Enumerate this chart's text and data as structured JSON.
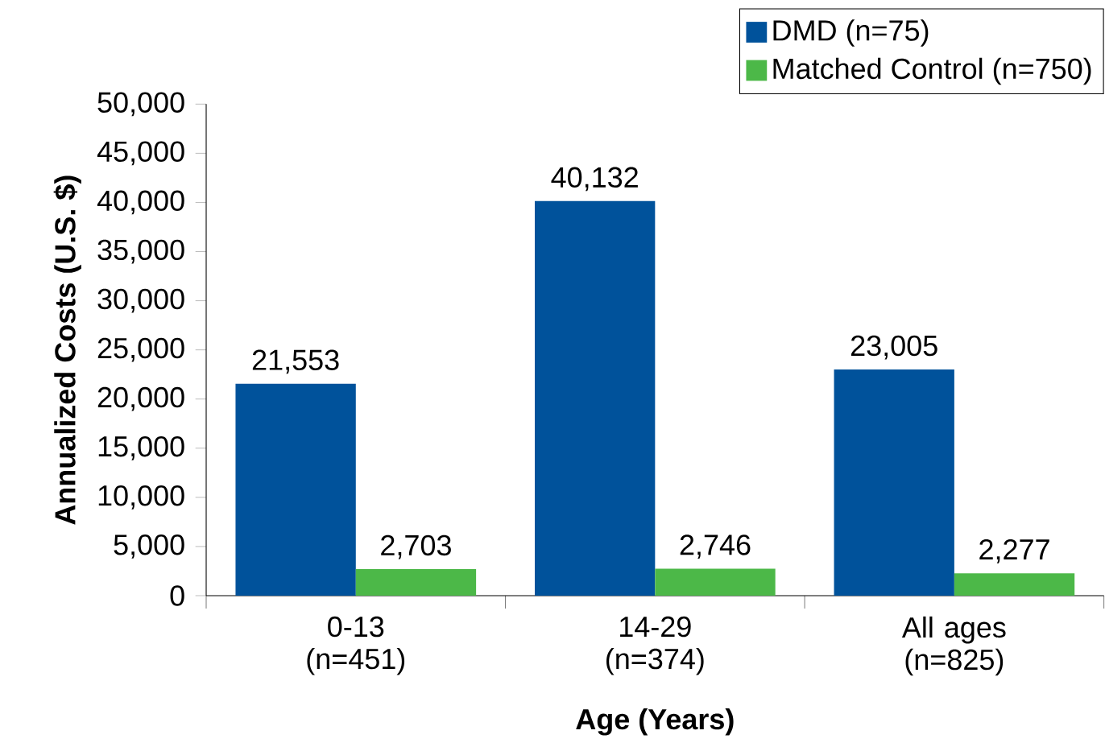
{
  "chart_data": {
    "type": "bar",
    "xlabel": "Age (Years)",
    "ylabel": "Annualized Costs (U.S. $)",
    "categories": [
      "0-13 (n=451)",
      "14-29 (n=374)",
      "All ages (n=825)"
    ],
    "series": [
      {
        "name": "DMD (n=75)",
        "color": "#00529b",
        "values": [
          21553,
          40132,
          23005
        ],
        "value_labels": [
          "21,553",
          "40,132",
          "23,005"
        ]
      },
      {
        "name": "Matched Control (n=750)",
        "color": "#4cb848",
        "values": [
          2703,
          2746,
          2277
        ],
        "value_labels": [
          "2,703",
          "2,746",
          "2,277"
        ]
      }
    ],
    "ylim": [
      0,
      50000
    ],
    "yticks": [
      0,
      {
        "value": 5000,
        "label": "5,000"
      },
      {
        "value": 10000,
        "label": "10,000"
      },
      {
        "value": 15000,
        "label": "15,000"
      },
      {
        "value": 20000,
        "label": "20,000"
      },
      {
        "value": 25000,
        "label": "25,000"
      },
      {
        "value": 30000,
        "label": "30,000"
      },
      {
        "value": 35000,
        "label": "35,000"
      },
      {
        "value": 40000,
        "label": "40,000"
      },
      {
        "value": 45000,
        "label": "45,000"
      },
      {
        "value": 50000,
        "label": "50,000"
      }
    ],
    "grid": false,
    "legend": "top right"
  }
}
